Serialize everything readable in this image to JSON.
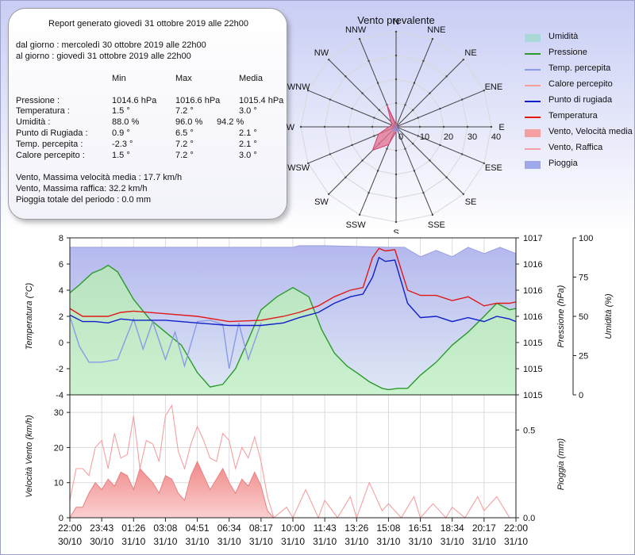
{
  "report": {
    "title": "Report generato giovedì 31 ottobre 2019 alle 22h00",
    "from": "dal giorno : mercoledì 30 ottobre 2019 alle 22h00",
    "to": "al giorno : giovedì 31 ottobre 2019 alle 22h00",
    "headers": {
      "min": "Min",
      "max": "Max",
      "avg": "Media"
    },
    "rows": [
      {
        "label": "Pressione :",
        "min": "1014.6 hPa",
        "max": "1016.6 hPa",
        "avg": "1015.4 hPa"
      },
      {
        "label": "Temperatura :",
        "min": "1.5 °",
        "max": "7.2 °",
        "avg": "3.0 °"
      },
      {
        "label": "Umidità :",
        "min": "88.0 %",
        "max": "96.0 %",
        "avg": "94.2 %"
      },
      {
        "label": "Punto di Rugiada :",
        "min": "0.9 °",
        "max": "6.5 °",
        "avg": "2.1 °"
      },
      {
        "label": "Temp. percepita :",
        "min": "-2.3 °",
        "max": "7.2 °",
        "avg": "2.1 °"
      },
      {
        "label": "Calore percepito :",
        "min": "1.5 °",
        "max": "7.2 °",
        "avg": "3.0 °"
      }
    ],
    "wind_avg": "Vento, Massima velocità media : 17.7 km/h",
    "wind_gust": "Vento, Massima raffica: 32.2 km/h",
    "rain": "Pioggia totale del periodo : 0.0 mm"
  },
  "legend": [
    {
      "label": "Umidità",
      "color": "#a8d8d8",
      "kind": "fill"
    },
    {
      "label": "Pressione",
      "color": "#2a9a2a",
      "kind": "line"
    },
    {
      "label": "Temp. percepita",
      "color": "#8a9ae8",
      "kind": "line"
    },
    {
      "label": "Calore percepito",
      "color": "#f4a0a0",
      "kind": "line"
    },
    {
      "label": "Punto di rugiada",
      "color": "#1020c8",
      "kind": "line"
    },
    {
      "label": "Temperatura",
      "color": "#e01818",
      "kind": "line"
    },
    {
      "label": "Vento, Velocità media",
      "color": "#f4a0a0",
      "kind": "fill"
    },
    {
      "label": "Vento, Raffica",
      "color": "#f4a0a0",
      "kind": "line"
    },
    {
      "label": "Pioggia",
      "color": "#a0a8ec",
      "kind": "fill"
    }
  ],
  "chart_data": [
    {
      "type": "radar",
      "title": "Vento prevalente",
      "directions": [
        "N",
        "NNE",
        "NE",
        "ENE",
        "E",
        "ESE",
        "SE",
        "SSE",
        "S",
        "SSW",
        "SW",
        "WSW",
        "W",
        "WNW",
        "NW",
        "NNW"
      ],
      "radial_ticks": [
        0,
        10,
        20,
        30,
        40
      ],
      "radial_max": 40,
      "series": [
        {
          "name": "Vento, Velocità media",
          "color": "#e06080",
          "values": [
            1,
            1,
            0,
            1,
            0,
            0,
            1,
            1,
            2,
            8,
            14,
            8,
            3,
            2,
            3,
            10
          ]
        }
      ]
    },
    {
      "type": "line",
      "x_ticks": [
        {
          "t": 0,
          "time": "22:00",
          "date": "30/10"
        },
        {
          "t": 1,
          "time": "23:43",
          "date": "30/10"
        },
        {
          "t": 2,
          "time": "01:26",
          "date": "31/10"
        },
        {
          "t": 3,
          "time": "03:08",
          "date": "31/10"
        },
        {
          "t": 4,
          "time": "04:51",
          "date": "31/10"
        },
        {
          "t": 5,
          "time": "06:34",
          "date": "31/10"
        },
        {
          "t": 6,
          "time": "08:17",
          "date": "31/10"
        },
        {
          "t": 7,
          "time": "10:00",
          "date": "31/10"
        },
        {
          "t": 8,
          "time": "11:43",
          "date": "31/10"
        },
        {
          "t": 9,
          "time": "13:26",
          "date": "31/10"
        },
        {
          "t": 10,
          "time": "15:08",
          "date": "31/10"
        },
        {
          "t": 11,
          "time": "16:51",
          "date": "31/10"
        },
        {
          "t": 12,
          "time": "18:34",
          "date": "31/10"
        },
        {
          "t": 13,
          "time": "20:17",
          "date": "31/10"
        },
        {
          "t": 14,
          "time": "22:00",
          "date": "31/10"
        }
      ],
      "y_left": {
        "label": "Temperatura (°C)",
        "min": -4,
        "max": 8,
        "ticks": [
          -4,
          -2,
          0,
          2,
          4,
          6,
          8
        ]
      },
      "y_right_pressure": {
        "label": "Pressione (hPa)",
        "ticks": [
          "1015",
          "1015",
          "1015",
          "1016",
          "1016",
          "1016",
          "1017"
        ]
      },
      "y_right_humidity": {
        "label": "Umidità (%)",
        "min": 0,
        "max": 100,
        "ticks": [
          0,
          25,
          50,
          75,
          100
        ]
      },
      "series": [
        {
          "name": "Umidità",
          "axis": "humidity",
          "color": "#b0b4ec",
          "x": [
            0,
            3.5,
            7,
            7.2,
            8,
            10,
            10.5,
            11,
            11.5,
            12,
            12.5,
            13,
            13.5,
            14
          ],
          "values": [
            94,
            94,
            94,
            95,
            95,
            94,
            94,
            88,
            92,
            88,
            94,
            90,
            94,
            90
          ]
        },
        {
          "name": "Pressione",
          "axis": "left_scaled",
          "color": "#2a9a2a",
          "x": [
            0,
            0.3,
            0.7,
            1,
            1.2,
            1.5,
            2,
            2.5,
            3,
            3.5,
            4,
            4.4,
            4.8,
            5.2,
            5.6,
            6,
            6.5,
            7,
            7.5,
            7.9,
            8.3,
            8.7,
            9,
            9.4,
            9.8,
            10,
            10.3,
            10.6,
            11,
            11.5,
            12,
            12.5,
            13,
            13.4,
            13.8,
            14
          ],
          "values": [
            3.8,
            4.4,
            5.3,
            5.6,
            5.9,
            5.4,
            3.3,
            1.8,
            0.8,
            -0.2,
            -2.3,
            -3.4,
            -3.2,
            -2.0,
            0.2,
            2.5,
            3.5,
            4.2,
            3.5,
            1.0,
            -0.8,
            -1.8,
            -2.3,
            -3.0,
            -3.5,
            -3.6,
            -3.5,
            -3.5,
            -2.5,
            -1.5,
            -0.2,
            0.8,
            2.0,
            3.0,
            2.5,
            2.6
          ]
        },
        {
          "name": "Temp. percepita",
          "axis": "left",
          "color": "#8a9ae8",
          "x": [
            0,
            0.3,
            0.6,
            1,
            1.5,
            2,
            2.3,
            2.6,
            3,
            3.3,
            3.6,
            4,
            4.4,
            4.8,
            5,
            5.3,
            5.6,
            6
          ],
          "values": [
            2.0,
            -0.3,
            -1.5,
            -1.5,
            -1.3,
            1.8,
            -0.5,
            1.6,
            -1.3,
            0.8,
            -1.8,
            1.6,
            1.7,
            1.4,
            -2.0,
            1.5,
            -1.3,
            1.5
          ]
        },
        {
          "name": "Punto di rugiada",
          "axis": "left",
          "color": "#1020c8",
          "x": [
            0,
            0.4,
            0.8,
            1.2,
            1.6,
            2,
            3,
            4,
            5,
            6,
            6.7,
            7.2,
            7.8,
            8.3,
            8.8,
            9.2,
            9.5,
            9.7,
            9.9,
            10.2,
            10.6,
            11,
            11.5,
            12,
            12.5,
            13,
            13.4,
            13.8,
            14
          ],
          "values": [
            2.1,
            1.6,
            1.6,
            1.5,
            1.8,
            1.7,
            1.7,
            1.5,
            1.3,
            1.3,
            1.5,
            1.9,
            2.3,
            3.0,
            3.5,
            3.7,
            5.0,
            6.5,
            6.2,
            6.3,
            3.0,
            1.9,
            2.0,
            1.6,
            1.9,
            1.6,
            2.0,
            1.8,
            1.6
          ]
        },
        {
          "name": "Temperatura",
          "axis": "left",
          "color": "#e01818",
          "x": [
            0,
            0.4,
            0.8,
            1.2,
            1.6,
            2,
            3,
            4,
            5,
            6,
            6.7,
            7.2,
            7.8,
            8.3,
            8.8,
            9.2,
            9.5,
            9.7,
            9.9,
            10.2,
            10.6,
            11,
            11.5,
            12,
            12.5,
            13,
            13.4,
            13.8,
            14
          ],
          "values": [
            2.6,
            2.0,
            2.0,
            2.0,
            2.3,
            2.4,
            2.2,
            2.0,
            1.6,
            1.7,
            2.0,
            2.3,
            2.8,
            3.5,
            4.0,
            4.2,
            6.5,
            7.2,
            7.0,
            7.1,
            4.0,
            3.6,
            3.6,
            3.2,
            3.5,
            2.8,
            3.0,
            3.0,
            3.1
          ]
        }
      ]
    },
    {
      "type": "area",
      "y_left": {
        "label": "Velocità Vento (km/h)",
        "min": 0,
        "max": 35,
        "ticks": [
          0,
          10,
          20,
          30
        ]
      },
      "y_right": {
        "label": "Pioggia (mm)",
        "min": 0,
        "max": 0.7,
        "ticks": [
          0.0,
          0.5
        ]
      },
      "series": [
        {
          "name": "Vento, Velocità media",
          "kind": "area",
          "color": "#f4a0a0",
          "x": [
            0,
            0.2,
            0.4,
            0.6,
            0.8,
            1,
            1.2,
            1.4,
            1.6,
            1.8,
            2,
            2.2,
            2.4,
            2.6,
            2.8,
            3,
            3.2,
            3.4,
            3.6,
            3.8,
            4,
            4.2,
            4.4,
            4.6,
            4.8,
            5,
            5.2,
            5.4,
            5.6,
            5.8,
            6,
            6.2,
            6.4
          ],
          "values": [
            0,
            3,
            3,
            7,
            10,
            8,
            11,
            9,
            13,
            12,
            8,
            14,
            12,
            10,
            7,
            12,
            11,
            7,
            5,
            12,
            16,
            12,
            8,
            11,
            14,
            10,
            7,
            11,
            9,
            13,
            9,
            2,
            0
          ]
        },
        {
          "name": "Vento, Raffica",
          "kind": "line",
          "color": "#f4a0a0",
          "x": [
            0,
            0.2,
            0.4,
            0.6,
            0.8,
            1,
            1.2,
            1.4,
            1.6,
            1.8,
            2,
            2.2,
            2.4,
            2.6,
            2.8,
            3,
            3.2,
            3.4,
            3.6,
            3.8,
            4,
            4.2,
            4.4,
            4.6,
            4.8,
            5,
            5.2,
            5.4,
            5.6,
            5.8,
            6,
            6.2,
            6.4,
            6.8,
            7,
            7.4,
            7.8,
            8,
            8.4,
            8.8,
            9,
            9.4,
            9.8,
            10,
            10.4,
            10.8,
            11,
            11.4,
            11.8,
            12,
            12.4,
            12.8,
            13,
            13.4,
            13.8
          ],
          "values": [
            5,
            14,
            14,
            12,
            20,
            22,
            14,
            24,
            17,
            18,
            29,
            14,
            22,
            21,
            16,
            29,
            32,
            19,
            14,
            21,
            26,
            22,
            17,
            16,
            24,
            22,
            14,
            20,
            17,
            23,
            16,
            6,
            0,
            3,
            0,
            8,
            0,
            5,
            0,
            6,
            0,
            10,
            2,
            4,
            0,
            6,
            0,
            4,
            0,
            3,
            0,
            6,
            2,
            6,
            0
          ]
        },
        {
          "name": "Pioggia",
          "kind": "bar",
          "color": "#a0a8ec",
          "values": []
        }
      ]
    }
  ]
}
